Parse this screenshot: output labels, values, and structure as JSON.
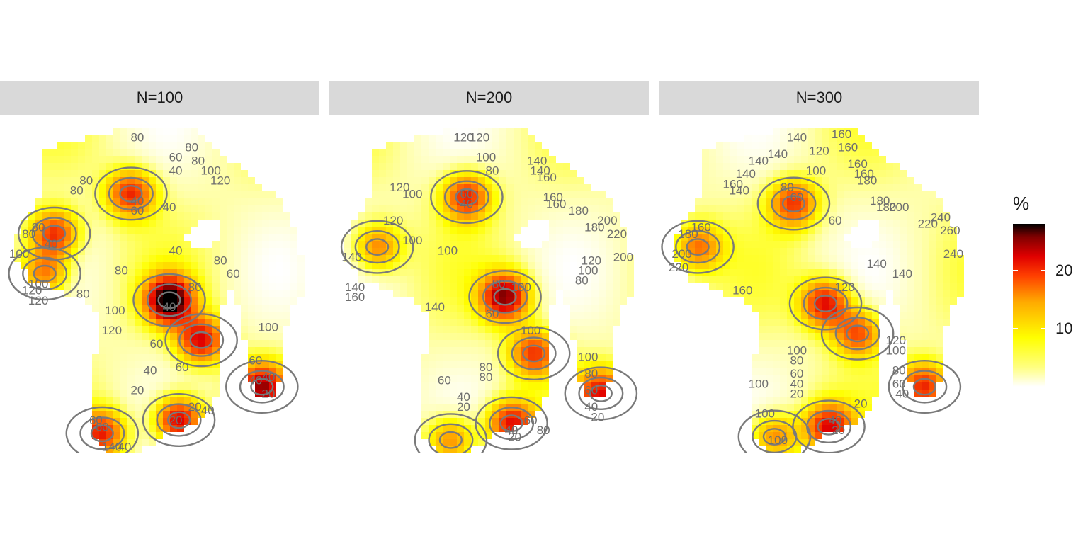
{
  "chart_data": {
    "type": "heatmap",
    "facets": [
      {
        "label": "N=100",
        "hotspots": [
          {
            "x": 0.17,
            "y": 0.34,
            "value": 18
          },
          {
            "x": 0.41,
            "y": 0.22,
            "value": 17
          },
          {
            "x": 0.53,
            "y": 0.54,
            "value": 27
          },
          {
            "x": 0.63,
            "y": 0.66,
            "value": 19
          },
          {
            "x": 0.56,
            "y": 0.9,
            "value": 22
          },
          {
            "x": 0.32,
            "y": 0.94,
            "value": 17
          },
          {
            "x": 0.82,
            "y": 0.8,
            "value": 20
          },
          {
            "x": 0.14,
            "y": 0.46,
            "value": 14
          }
        ],
        "contour_labels": [
          {
            "t": "80",
            "x": 0.43,
            "y": 0.05
          },
          {
            "t": "80",
            "x": 0.6,
            "y": 0.08
          },
          {
            "t": "60",
            "x": 0.55,
            "y": 0.11
          },
          {
            "t": "80",
            "x": 0.62,
            "y": 0.12
          },
          {
            "t": "100",
            "x": 0.66,
            "y": 0.15
          },
          {
            "t": "40",
            "x": 0.55,
            "y": 0.15
          },
          {
            "t": "120",
            "x": 0.69,
            "y": 0.18
          },
          {
            "t": "80",
            "x": 0.27,
            "y": 0.18
          },
          {
            "t": "80",
            "x": 0.24,
            "y": 0.21
          },
          {
            "t": "40",
            "x": 0.43,
            "y": 0.24
          },
          {
            "t": "40",
            "x": 0.53,
            "y": 0.26
          },
          {
            "t": "60",
            "x": 0.43,
            "y": 0.27
          },
          {
            "t": "80",
            "x": 0.12,
            "y": 0.32
          },
          {
            "t": "80",
            "x": 0.09,
            "y": 0.34
          },
          {
            "t": "40",
            "x": 0.16,
            "y": 0.37
          },
          {
            "t": "100",
            "x": 0.06,
            "y": 0.4
          },
          {
            "t": "40",
            "x": 0.55,
            "y": 0.39
          },
          {
            "t": "80",
            "x": 0.69,
            "y": 0.42
          },
          {
            "t": "80",
            "x": 0.38,
            "y": 0.45
          },
          {
            "t": "60",
            "x": 0.73,
            "y": 0.46
          },
          {
            "t": "100",
            "x": 0.12,
            "y": 0.49
          },
          {
            "t": "120",
            "x": 0.1,
            "y": 0.51
          },
          {
            "t": "120",
            "x": 0.12,
            "y": 0.54
          },
          {
            "t": "80",
            "x": 0.26,
            "y": 0.52
          },
          {
            "t": "80",
            "x": 0.61,
            "y": 0.5
          },
          {
            "t": "100",
            "x": 0.36,
            "y": 0.57
          },
          {
            "t": "40",
            "x": 0.53,
            "y": 0.56
          },
          {
            "t": "120",
            "x": 0.35,
            "y": 0.63
          },
          {
            "t": "100",
            "x": 0.84,
            "y": 0.62
          },
          {
            "t": "60",
            "x": 0.49,
            "y": 0.67
          },
          {
            "t": "60",
            "x": 0.8,
            "y": 0.72
          },
          {
            "t": "40",
            "x": 0.47,
            "y": 0.75
          },
          {
            "t": "60",
            "x": 0.57,
            "y": 0.74
          },
          {
            "t": "40",
            "x": 0.8,
            "y": 0.78
          },
          {
            "t": "40",
            "x": 0.84,
            "y": 0.77
          },
          {
            "t": "20",
            "x": 0.43,
            "y": 0.81
          },
          {
            "t": "20",
            "x": 0.84,
            "y": 0.82
          },
          {
            "t": "20",
            "x": 0.61,
            "y": 0.86
          },
          {
            "t": "40",
            "x": 0.65,
            "y": 0.87
          },
          {
            "t": "60",
            "x": 0.3,
            "y": 0.9
          },
          {
            "t": "20",
            "x": 0.55,
            "y": 0.9
          },
          {
            "t": "60",
            "x": 0.32,
            "y": 0.92
          },
          {
            "t": "140",
            "x": 0.35,
            "y": 0.98
          },
          {
            "t": "40",
            "x": 0.39,
            "y": 0.98
          }
        ]
      },
      {
        "label": "N=200",
        "hotspots": [
          {
            "x": 0.43,
            "y": 0.23,
            "value": 17
          },
          {
            "x": 0.55,
            "y": 0.53,
            "value": 22
          },
          {
            "x": 0.64,
            "y": 0.7,
            "value": 16
          },
          {
            "x": 0.15,
            "y": 0.38,
            "value": 13
          },
          {
            "x": 0.57,
            "y": 0.91,
            "value": 19
          },
          {
            "x": 0.38,
            "y": 0.96,
            "value": 13
          },
          {
            "x": 0.85,
            "y": 0.82,
            "value": 17
          }
        ],
        "contour_labels": [
          {
            "t": "120",
            "x": 0.42,
            "y": 0.05
          },
          {
            "t": "120",
            "x": 0.47,
            "y": 0.05
          },
          {
            "t": "100",
            "x": 0.49,
            "y": 0.11
          },
          {
            "t": "140",
            "x": 0.65,
            "y": 0.12
          },
          {
            "t": "140",
            "x": 0.66,
            "y": 0.15
          },
          {
            "t": "80",
            "x": 0.51,
            "y": 0.15
          },
          {
            "t": "160",
            "x": 0.68,
            "y": 0.17
          },
          {
            "t": "120",
            "x": 0.22,
            "y": 0.2
          },
          {
            "t": "100",
            "x": 0.26,
            "y": 0.22
          },
          {
            "t": "160",
            "x": 0.7,
            "y": 0.23
          },
          {
            "t": "60",
            "x": 0.43,
            "y": 0.22
          },
          {
            "t": "160",
            "x": 0.71,
            "y": 0.25
          },
          {
            "t": "40",
            "x": 0.43,
            "y": 0.25
          },
          {
            "t": "180",
            "x": 0.78,
            "y": 0.27
          },
          {
            "t": "120",
            "x": 0.2,
            "y": 0.3
          },
          {
            "t": "200",
            "x": 0.87,
            "y": 0.3
          },
          {
            "t": "180",
            "x": 0.83,
            "y": 0.32
          },
          {
            "t": "220",
            "x": 0.9,
            "y": 0.34
          },
          {
            "t": "100",
            "x": 0.26,
            "y": 0.36
          },
          {
            "t": "100",
            "x": 0.37,
            "y": 0.39
          },
          {
            "t": "140",
            "x": 0.07,
            "y": 0.41
          },
          {
            "t": "200",
            "x": 0.92,
            "y": 0.41
          },
          {
            "t": "120",
            "x": 0.82,
            "y": 0.42
          },
          {
            "t": "100",
            "x": 0.81,
            "y": 0.45
          },
          {
            "t": "80",
            "x": 0.79,
            "y": 0.48
          },
          {
            "t": "80",
            "x": 0.53,
            "y": 0.49
          },
          {
            "t": "100",
            "x": 0.6,
            "y": 0.5
          },
          {
            "t": "140",
            "x": 0.08,
            "y": 0.5
          },
          {
            "t": "160",
            "x": 0.08,
            "y": 0.53
          },
          {
            "t": "140",
            "x": 0.33,
            "y": 0.56
          },
          {
            "t": "60",
            "x": 0.51,
            "y": 0.58
          },
          {
            "t": "100",
            "x": 0.63,
            "y": 0.63
          },
          {
            "t": "100",
            "x": 0.81,
            "y": 0.71
          },
          {
            "t": "80",
            "x": 0.49,
            "y": 0.74
          },
          {
            "t": "80",
            "x": 0.49,
            "y": 0.77
          },
          {
            "t": "60",
            "x": 0.36,
            "y": 0.78
          },
          {
            "t": "80",
            "x": 0.82,
            "y": 0.76
          },
          {
            "t": "40",
            "x": 0.42,
            "y": 0.83
          },
          {
            "t": "60",
            "x": 0.82,
            "y": 0.81
          },
          {
            "t": "20",
            "x": 0.42,
            "y": 0.86
          },
          {
            "t": "40",
            "x": 0.82,
            "y": 0.86
          },
          {
            "t": "60",
            "x": 0.63,
            "y": 0.9
          },
          {
            "t": "20",
            "x": 0.84,
            "y": 0.89
          },
          {
            "t": "40",
            "x": 0.57,
            "y": 0.93
          },
          {
            "t": "80",
            "x": 0.67,
            "y": 0.93
          },
          {
            "t": "20",
            "x": 0.58,
            "y": 0.95
          }
        ]
      },
      {
        "label": "N=300",
        "hotspots": [
          {
            "x": 0.42,
            "y": 0.25,
            "value": 16
          },
          {
            "x": 0.52,
            "y": 0.55,
            "value": 19
          },
          {
            "x": 0.62,
            "y": 0.64,
            "value": 15
          },
          {
            "x": 0.12,
            "y": 0.38,
            "value": 13
          },
          {
            "x": 0.53,
            "y": 0.92,
            "value": 18
          },
          {
            "x": 0.36,
            "y": 0.95,
            "value": 13
          },
          {
            "x": 0.83,
            "y": 0.8,
            "value": 17
          }
        ],
        "contour_labels": [
          {
            "t": "140",
            "x": 0.43,
            "y": 0.05
          },
          {
            "t": "160",
            "x": 0.57,
            "y": 0.04
          },
          {
            "t": "120",
            "x": 0.5,
            "y": 0.09
          },
          {
            "t": "160",
            "x": 0.59,
            "y": 0.08
          },
          {
            "t": "140",
            "x": 0.37,
            "y": 0.1
          },
          {
            "t": "140",
            "x": 0.31,
            "y": 0.12
          },
          {
            "t": "160",
            "x": 0.62,
            "y": 0.13
          },
          {
            "t": "100",
            "x": 0.49,
            "y": 0.15
          },
          {
            "t": "160",
            "x": 0.64,
            "y": 0.16
          },
          {
            "t": "140",
            "x": 0.27,
            "y": 0.16
          },
          {
            "t": "180",
            "x": 0.65,
            "y": 0.18
          },
          {
            "t": "160",
            "x": 0.23,
            "y": 0.19
          },
          {
            "t": "140",
            "x": 0.25,
            "y": 0.21
          },
          {
            "t": "80",
            "x": 0.4,
            "y": 0.2
          },
          {
            "t": "60",
            "x": 0.43,
            "y": 0.23
          },
          {
            "t": "180",
            "x": 0.69,
            "y": 0.24
          },
          {
            "t": "180",
            "x": 0.71,
            "y": 0.26
          },
          {
            "t": "200",
            "x": 0.75,
            "y": 0.26
          },
          {
            "t": "240",
            "x": 0.88,
            "y": 0.29
          },
          {
            "t": "60",
            "x": 0.55,
            "y": 0.3
          },
          {
            "t": "220",
            "x": 0.84,
            "y": 0.31
          },
          {
            "t": "160",
            "x": 0.13,
            "y": 0.32
          },
          {
            "t": "260",
            "x": 0.91,
            "y": 0.33
          },
          {
            "t": "180",
            "x": 0.09,
            "y": 0.34
          },
          {
            "t": "240",
            "x": 0.92,
            "y": 0.4
          },
          {
            "t": "200",
            "x": 0.07,
            "y": 0.4
          },
          {
            "t": "140",
            "x": 0.68,
            "y": 0.43
          },
          {
            "t": "220",
            "x": 0.06,
            "y": 0.44
          },
          {
            "t": "140",
            "x": 0.76,
            "y": 0.46
          },
          {
            "t": "120",
            "x": 0.58,
            "y": 0.5
          },
          {
            "t": "160",
            "x": 0.26,
            "y": 0.51
          },
          {
            "t": "100",
            "x": 0.43,
            "y": 0.69
          },
          {
            "t": "120",
            "x": 0.74,
            "y": 0.66
          },
          {
            "t": "100",
            "x": 0.74,
            "y": 0.69
          },
          {
            "t": "80",
            "x": 0.43,
            "y": 0.72
          },
          {
            "t": "60",
            "x": 0.43,
            "y": 0.76
          },
          {
            "t": "80",
            "x": 0.75,
            "y": 0.75
          },
          {
            "t": "100",
            "x": 0.31,
            "y": 0.79
          },
          {
            "t": "40",
            "x": 0.43,
            "y": 0.79
          },
          {
            "t": "60",
            "x": 0.75,
            "y": 0.79
          },
          {
            "t": "20",
            "x": 0.43,
            "y": 0.82
          },
          {
            "t": "40",
            "x": 0.76,
            "y": 0.82
          },
          {
            "t": "20",
            "x": 0.63,
            "y": 0.85
          },
          {
            "t": "100",
            "x": 0.33,
            "y": 0.88
          },
          {
            "t": "40",
            "x": 0.55,
            "y": 0.9
          },
          {
            "t": "20",
            "x": 0.56,
            "y": 0.93
          },
          {
            "t": "100",
            "x": 0.37,
            "y": 0.96
          }
        ]
      }
    ],
    "legend": {
      "title": "%",
      "ticks": [
        10,
        20
      ],
      "range": [
        0,
        28
      ]
    }
  }
}
